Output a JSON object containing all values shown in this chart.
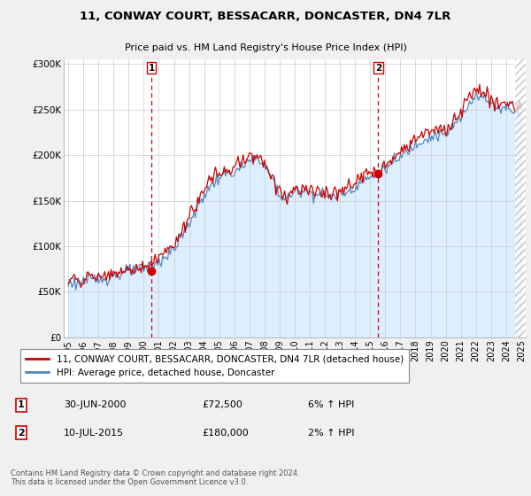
{
  "title": "11, CONWAY COURT, BESSACARR, DONCASTER, DN4 7LR",
  "subtitle": "Price paid vs. HM Land Registry's House Price Index (HPI)",
  "ylabel_ticks": [
    "£0",
    "£50K",
    "£100K",
    "£150K",
    "£200K",
    "£250K",
    "£300K"
  ],
  "ylabel_values": [
    0,
    50000,
    100000,
    150000,
    200000,
    250000,
    300000
  ],
  "ylim": [
    0,
    305000
  ],
  "xlim_start": 1994.7,
  "xlim_end": 2025.3,
  "marker1_x": 2000.5,
  "marker1_y": 72500,
  "marker2_x": 2015.53,
  "marker2_y": 180000,
  "legend_line1": "11, CONWAY COURT, BESSACARR, DONCASTER, DN4 7LR (detached house)",
  "legend_line2": "HPI: Average price, detached house, Doncaster",
  "table_row1": [
    "1",
    "30-JUN-2000",
    "£72,500",
    "6% ↑ HPI"
  ],
  "table_row2": [
    "2",
    "10-JUL-2015",
    "£180,000",
    "2% ↑ HPI"
  ],
  "footer": "Contains HM Land Registry data © Crown copyright and database right 2024.\nThis data is licensed under the Open Government Licence v3.0.",
  "line_color_red": "#cc0000",
  "line_color_blue": "#5588bb",
  "fill_color_blue": "#ddeeff",
  "background_color": "#f0f0f0",
  "plot_bg_color": "#ffffff",
  "hatch_start": 2024.583
}
